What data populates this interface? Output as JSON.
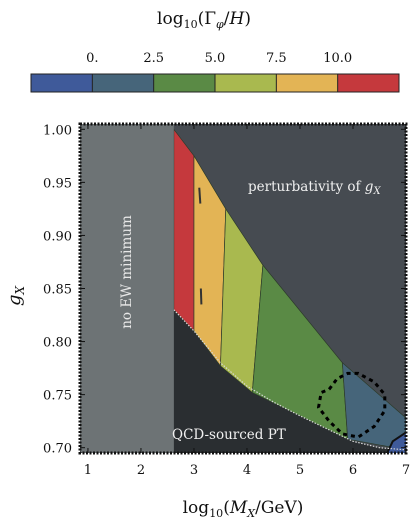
{
  "chart_data": {
    "type": "heatmap",
    "colorbar": {
      "title": "log₁₀(Γφ/H)",
      "tick_labels": [
        "0.",
        "2.5",
        "5.0",
        "7.5",
        "10.0"
      ],
      "tick_values": [
        0,
        2.5,
        5.0,
        7.5,
        10.0
      ],
      "range": [
        -2.5,
        12.5
      ],
      "bands": [
        {
          "from": -2.5,
          "to": 0.0,
          "color": "#3f5a9a"
        },
        {
          "from": 0.0,
          "to": 2.5,
          "color": "#46657a"
        },
        {
          "from": 2.5,
          "to": 5.0,
          "color": "#5a8a45"
        },
        {
          "from": 5.0,
          "to": 7.5,
          "color": "#a9b94f"
        },
        {
          "from": 7.5,
          "to": 10.0,
          "color": "#e3b455"
        },
        {
          "from": 10.0,
          "to": 12.5,
          "color": "#c5393d"
        }
      ]
    },
    "xlabel": "log₁₀(M_X/GeV)",
    "ylabel": "g_X",
    "xlim": [
      0.85,
      7.0
    ],
    "ylim": [
      0.695,
      1.005
    ],
    "x_ticks": [
      1,
      2,
      3,
      4,
      5,
      6,
      7
    ],
    "y_ticks": [
      0.7,
      0.75,
      0.8,
      0.85,
      0.9,
      0.95,
      1.0
    ],
    "x_tick_labels": [
      "1",
      "2",
      "3",
      "4",
      "5",
      "6",
      "7"
    ],
    "y_tick_labels": [
      "0.70",
      "0.75",
      "0.80",
      "0.85",
      "0.90",
      "0.95",
      "1.00"
    ],
    "regions": [
      {
        "label": "no EW minimum",
        "color": "#6d7375",
        "x_range": [
          0.85,
          2.62
        ]
      },
      {
        "label": "perturbativity of g_X",
        "color": "#464b51"
      },
      {
        "label": "QCD-sourced PT",
        "color": "#2a2e31"
      }
    ],
    "perturbativity_boundary": [
      [
        2.62,
        1.0
      ],
      [
        3.0,
        0.975
      ],
      [
        3.5,
        0.93
      ],
      [
        4.0,
        0.893
      ],
      [
        4.5,
        0.86
      ],
      [
        5.0,
        0.83
      ],
      [
        5.5,
        0.798
      ],
      [
        6.0,
        0.77
      ],
      [
        6.5,
        0.748
      ],
      [
        7.0,
        0.728
      ]
    ],
    "qcd_boundary": [
      [
        2.62,
        0.83
      ],
      [
        3.0,
        0.81
      ],
      [
        3.5,
        0.78
      ],
      [
        4.0,
        0.758
      ],
      [
        4.5,
        0.743
      ],
      [
        5.0,
        0.73
      ],
      [
        5.5,
        0.718
      ],
      [
        6.0,
        0.706
      ],
      [
        6.5,
        0.7
      ],
      [
        7.0,
        0.698
      ]
    ],
    "contour_bands": [
      {
        "level": 12.5,
        "color": "#c5393d",
        "top": [
          [
            2.62,
            1.0
          ],
          [
            3.0,
            0.975
          ]
        ],
        "bottom": [
          [
            2.62,
            0.83
          ],
          [
            3.0,
            0.81
          ]
        ]
      },
      {
        "level": 10.0,
        "color": "#e3b455",
        "top": [
          [
            3.0,
            0.975
          ],
          [
            3.6,
            0.925
          ]
        ],
        "bottom": [
          [
            3.0,
            0.81
          ],
          [
            3.5,
            0.777
          ]
        ]
      },
      {
        "level": 7.5,
        "color": "#a9b94f",
        "top": [
          [
            3.6,
            0.925
          ],
          [
            4.3,
            0.872
          ]
        ],
        "bottom": [
          [
            3.5,
            0.777
          ],
          [
            4.1,
            0.752
          ]
        ]
      },
      {
        "level": 5.0,
        "color": "#5a8a45",
        "top": [
          [
            4.3,
            0.872
          ],
          [
            5.8,
            0.78
          ]
        ],
        "bottom": [
          [
            4.1,
            0.752
          ],
          [
            5.9,
            0.708
          ]
        ]
      },
      {
        "level": 2.5,
        "color": "#46657a",
        "top": [
          [
            5.8,
            0.78
          ],
          [
            7.0,
            0.728
          ]
        ],
        "bottom": [
          [
            5.9,
            0.708
          ],
          [
            7.0,
            0.698
          ]
        ]
      }
    ],
    "dashed_contour": [
      [
        5.55,
        0.755
      ],
      [
        5.7,
        0.765
      ],
      [
        5.9,
        0.77
      ],
      [
        6.1,
        0.77
      ],
      [
        6.4,
        0.762
      ],
      [
        6.6,
        0.75
      ],
      [
        6.6,
        0.735
      ],
      [
        6.4,
        0.72
      ],
      [
        6.1,
        0.71
      ],
      [
        5.8,
        0.713
      ],
      [
        5.55,
        0.725
      ],
      [
        5.35,
        0.738
      ],
      [
        5.4,
        0.752
      ],
      [
        5.55,
        0.755
      ]
    ],
    "grid": false,
    "legend": "colorbar-top"
  }
}
